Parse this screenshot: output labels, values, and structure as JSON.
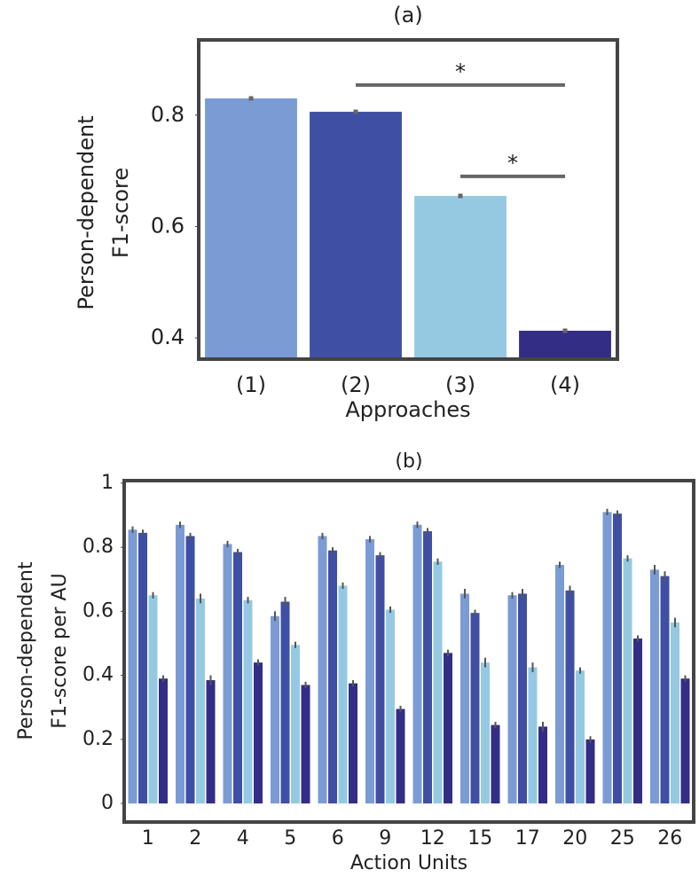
{
  "chart_data": [
    {
      "type": "bar",
      "title": "(a)",
      "y_label": [
        "Person-dependent",
        "F1-score"
      ],
      "x_label": "Approaches",
      "categories": [
        "(1)",
        "(2)",
        "(3)",
        "(4)"
      ],
      "values": [
        0.83,
        0.806,
        0.655,
        0.413
      ],
      "errors": [
        0.004,
        0.004,
        0.004,
        0.004
      ],
      "colors": [
        "#7b9bd4",
        "#3f4fa3",
        "#95c9e2",
        "#332d86"
      ],
      "ylim": [
        0.362,
        0.935
      ],
      "yticks": [
        0.4,
        0.6,
        0.8
      ],
      "annotations": [
        {
          "label": "*",
          "from": 1,
          "to": 3,
          "y": 0.854
        },
        {
          "label": "*",
          "from": 2,
          "to": 3,
          "y": 0.69
        }
      ]
    },
    {
      "type": "grouped-bar",
      "title": "(b)",
      "y_label": [
        "Person-dependent",
        "F1-score per AU"
      ],
      "x_label": "Action Units",
      "categories": [
        "1",
        "2",
        "4",
        "5",
        "6",
        "9",
        "12",
        "15",
        "17",
        "20",
        "25",
        "26"
      ],
      "series": [
        {
          "color": "#7b9bd4",
          "values": [
            0.855,
            0.87,
            0.81,
            0.585,
            0.835,
            0.825,
            0.87,
            0.655,
            0.65,
            0.745,
            0.91,
            0.73
          ],
          "errors": [
            0.01,
            0.01,
            0.01,
            0.015,
            0.01,
            0.01,
            0.01,
            0.015,
            0.01,
            0.01,
            0.01,
            0.015
          ]
        },
        {
          "color": "#3f4fa3",
          "values": [
            0.845,
            0.835,
            0.785,
            0.63,
            0.79,
            0.775,
            0.85,
            0.595,
            0.655,
            0.665,
            0.905,
            0.71
          ],
          "errors": [
            0.01,
            0.01,
            0.01,
            0.015,
            0.01,
            0.01,
            0.01,
            0.01,
            0.015,
            0.015,
            0.01,
            0.015
          ]
        },
        {
          "color": "#95c9e2",
          "values": [
            0.65,
            0.64,
            0.635,
            0.495,
            0.68,
            0.605,
            0.755,
            0.44,
            0.425,
            0.415,
            0.765,
            0.565
          ],
          "errors": [
            0.01,
            0.015,
            0.01,
            0.01,
            0.01,
            0.01,
            0.01,
            0.015,
            0.015,
            0.01,
            0.01,
            0.015
          ]
        },
        {
          "color": "#332d86",
          "values": [
            0.39,
            0.385,
            0.44,
            0.37,
            0.375,
            0.295,
            0.47,
            0.245,
            0.24,
            0.2,
            0.515,
            0.39
          ],
          "errors": [
            0.01,
            0.015,
            0.01,
            0.01,
            0.01,
            0.01,
            0.01,
            0.01,
            0.015,
            0.01,
            0.01,
            0.01
          ]
        }
      ],
      "ylim": [
        -0.058,
        1.008
      ],
      "yticks": [
        0,
        0.2,
        0.4,
        0.6,
        0.8,
        1
      ]
    }
  ]
}
